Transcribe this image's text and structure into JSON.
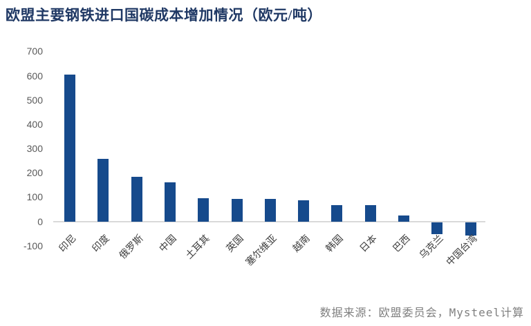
{
  "title": "欧盟主要钢铁进口国碳成本增加情况（欧元/吨）",
  "source_note": "数据来源：欧盟委员会，Mysteel计算",
  "colors": {
    "bar": "#164a8c",
    "title": "#1f3864",
    "y_tick_label": "#595959",
    "x_axis_label": "#3f3f3f",
    "zero_line": "#d9d9d9",
    "source_note": "#7f7f7f",
    "background": "#ffffff"
  },
  "chart_data": {
    "type": "bar",
    "title": "欧盟主要钢铁进口国碳成本增加情况（欧元/吨）",
    "categories": [
      "印尼",
      "印度",
      "俄罗斯",
      "中国",
      "土耳其",
      "英国",
      "塞尔维亚",
      "越南",
      "韩国",
      "日本",
      "巴西",
      "乌克兰",
      "中国台湾"
    ],
    "values": [
      605,
      258,
      184,
      162,
      96,
      92,
      93,
      88,
      68,
      66,
      24,
      -50,
      -55
    ],
    "xlabel": "",
    "ylabel": "",
    "y_ticks": [
      700,
      600,
      500,
      400,
      300,
      200,
      100,
      0,
      -100
    ],
    "ylim": [
      -100,
      700
    ],
    "grid": false,
    "legend": false,
    "x_label_rotation_deg": -45,
    "series_color": "#164a8c"
  }
}
